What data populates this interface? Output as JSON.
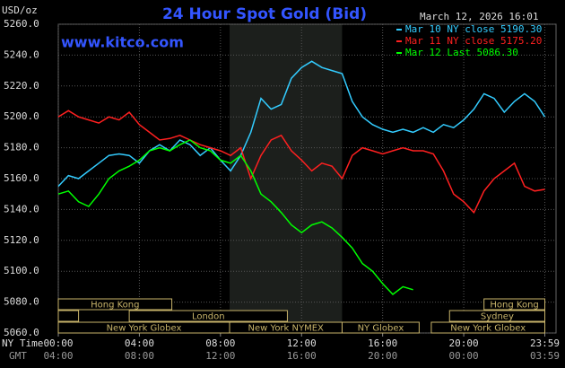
{
  "chart_data": {
    "type": "line",
    "title": "24 Hour Spot Gold (Bid)",
    "subtitle": "www.kitco.com",
    "unit_label": "USD/oz",
    "timestamp": "March 12, 2026 16:01",
    "x_axis_label": "NY Time",
    "x2_axis_label": "GMT",
    "x": [
      0,
      0.5,
      1,
      1.5,
      2,
      2.5,
      3,
      3.5,
      4,
      4.5,
      5,
      5.5,
      6,
      6.5,
      7,
      7.5,
      8,
      8.5,
      9,
      9.5,
      10,
      10.5,
      11,
      11.5,
      12,
      12.5,
      13,
      13.5,
      14,
      14.5,
      15,
      15.5,
      16,
      16.5,
      17,
      17.5,
      18,
      18.5,
      19,
      19.5,
      20,
      20.5,
      21,
      21.5,
      22,
      22.5,
      23,
      23.5,
      24
    ],
    "xlim": [
      0,
      24
    ],
    "xticks": [
      {
        "value": 0,
        "label": "00:00"
      },
      {
        "value": 4,
        "label": "04:00"
      },
      {
        "value": 8,
        "label": "08:00"
      },
      {
        "value": 12,
        "label": "12:00"
      },
      {
        "value": 16,
        "label": "16:00"
      },
      {
        "value": 20,
        "label": "20:00"
      },
      {
        "value": 24,
        "label": "23:59"
      }
    ],
    "x2ticks": [
      "04:00",
      "08:00",
      "12:00",
      "16:00",
      "20:00",
      "00:00",
      "03:59"
    ],
    "ylim": [
      5060,
      5260
    ],
    "yticks": [
      {
        "value": 5060,
        "label": "5060.0"
      },
      {
        "value": 5080,
        "label": "5080.0"
      },
      {
        "value": 5100,
        "label": "5100.0"
      },
      {
        "value": 5120,
        "label": "5120.0"
      },
      {
        "value": 5140,
        "label": "5140.0"
      },
      {
        "value": 5160,
        "label": "5160.0"
      },
      {
        "value": 5180,
        "label": "5180.0"
      },
      {
        "value": 5200,
        "label": "5200.0"
      },
      {
        "value": 5220,
        "label": "5220.0"
      },
      {
        "value": 5240,
        "label": "5240.0"
      },
      {
        "value": 5260,
        "label": "5260.0"
      }
    ],
    "grid": true,
    "series": [
      {
        "name": "Mar 10 NY close 5190.30",
        "color": "#33ccff",
        "values": [
          5155,
          5162,
          5160,
          5165,
          5170,
          5175,
          5176,
          5175,
          5170,
          5178,
          5182,
          5178,
          5185,
          5182,
          5175,
          5180,
          5172,
          5165,
          5175,
          5190,
          5212,
          5205,
          5208,
          5225,
          5232,
          5236,
          5232,
          5230,
          5228,
          5210,
          5200,
          5195,
          5192,
          5190,
          5192,
          5190,
          5193,
          5190,
          5195,
          5193,
          5198,
          5205,
          5215,
          5212,
          5203,
          5210,
          5215,
          5210,
          5200
        ]
      },
      {
        "name": "Mar 11 NY close 5175.20",
        "color": "#ff2020",
        "values": [
          5200,
          5204,
          5200,
          5198,
          5196,
          5200,
          5198,
          5203,
          5195,
          5190,
          5185,
          5186,
          5188,
          5185,
          5182,
          5180,
          5178,
          5175,
          5180,
          5160,
          5175,
          5185,
          5188,
          5178,
          5172,
          5165,
          5170,
          5168,
          5160,
          5175,
          5180,
          5178,
          5176,
          5178,
          5180,
          5178,
          5178,
          5176,
          5165,
          5150,
          5145,
          5138,
          5152,
          5160,
          5165,
          5170,
          5155,
          5152,
          5153
        ]
      },
      {
        "name": "Mar 12 Last 5086.30",
        "color": "#00ff00",
        "values": [
          5150,
          5152,
          5145,
          5142,
          5150,
          5160,
          5165,
          5168,
          5172,
          5178,
          5180,
          5178,
          5182,
          5185,
          5180,
          5178,
          5172,
          5170,
          5175,
          5165,
          5150,
          5145,
          5138,
          5130,
          5125,
          5130,
          5132,
          5128,
          5122,
          5115,
          5105,
          5100,
          5092,
          5085,
          5090,
          5088,
          null,
          null,
          null,
          null,
          null,
          null,
          null,
          null,
          null,
          null,
          null,
          null,
          null
        ]
      }
    ],
    "sessions": [
      {
        "label": "Hong Kong",
        "start": 0,
        "end": 5.6
      },
      {
        "label": "Hong Kong",
        "start": 21,
        "end": 24
      },
      {
        "label": null,
        "start": 0,
        "end": 1
      },
      {
        "label": "London",
        "start": 3.5,
        "end": 11.3
      },
      {
        "label": "Sydney",
        "start": 19.3,
        "end": 24
      },
      {
        "label": "New York Globex",
        "start": 0,
        "end": 8.45
      },
      {
        "label": "New York NYMEX",
        "start": 8.45,
        "end": 14
      },
      {
        "label": "NY Globex",
        "start": 14,
        "end": 17.8
      },
      {
        "label": "New York Globex",
        "start": 18.4,
        "end": 24
      }
    ]
  }
}
